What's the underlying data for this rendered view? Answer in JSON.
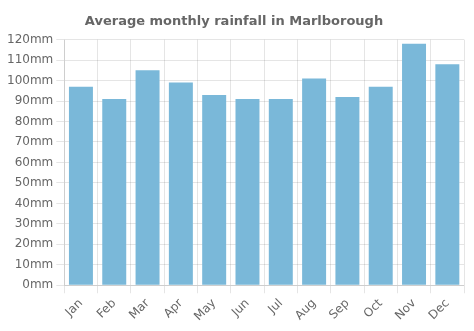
{
  "chart_data": {
    "type": "bar",
    "title": "Average monthly rainfall in Marlborough",
    "categories": [
      "Jan",
      "Feb",
      "Mar",
      "Apr",
      "May",
      "Jun",
      "Jul",
      "Aug",
      "Sep",
      "Oct",
      "Nov",
      "Dec"
    ],
    "values": [
      97,
      91,
      105,
      99,
      93,
      91,
      91,
      101,
      92,
      97,
      118,
      108
    ],
    "color": "#7ab8d9",
    "ylim": [
      0,
      120
    ],
    "yticks": [
      {
        "value": 0,
        "label": "0mm"
      },
      {
        "value": 10,
        "label": "10mm"
      },
      {
        "value": 20,
        "label": "20mm"
      },
      {
        "value": 30,
        "label": "30mm"
      },
      {
        "value": 40,
        "label": "40mm"
      },
      {
        "value": 50,
        "label": "50mm"
      },
      {
        "value": 60,
        "label": "60mm"
      },
      {
        "value": 70,
        "label": "70mm"
      },
      {
        "value": 80,
        "label": "80mm"
      },
      {
        "value": 90,
        "label": "90mm"
      },
      {
        "value": 100,
        "label": "100mm"
      },
      {
        "value": 110,
        "label": "110mm"
      },
      {
        "value": 120,
        "label": "120mm"
      }
    ],
    "grid": true
  }
}
